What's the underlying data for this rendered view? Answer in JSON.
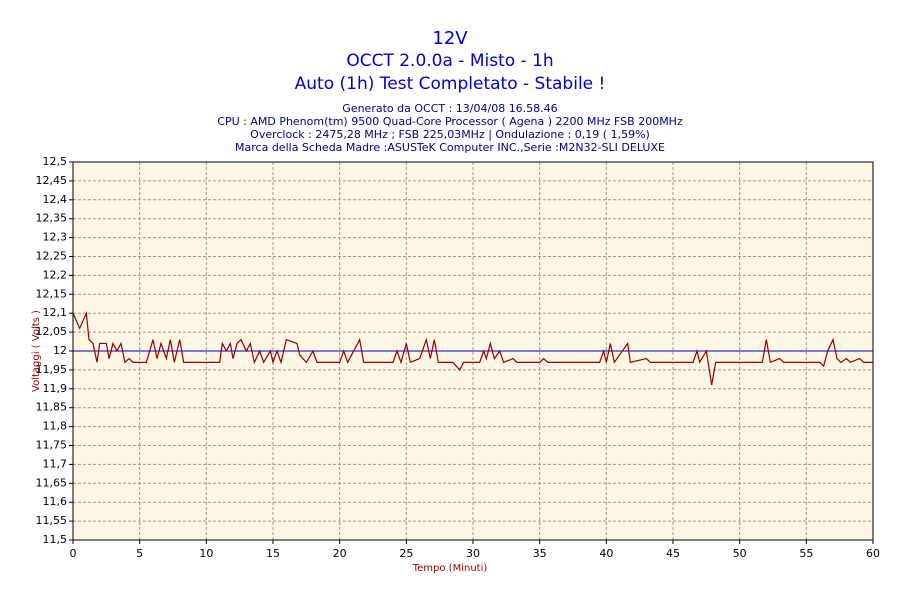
{
  "chart_data": {
    "type": "line",
    "title": "12V",
    "subtitle": "OCCT 2.0.0a - Misto - 1h",
    "subtitle2": "Auto (1h) Test Completato - Stabile !",
    "info": [
      "Generato da OCCT : 13/04/08 16.58.46",
      "CPU : AMD Phenom(tm) 9500 Quad-Core Processor ( Agena ) 2200 MHz FSB 200MHz",
      "Overclock : 2475,28 MHz ; FSB 225,03MHz | Ondulazione : 0,19 ( 1,59%)",
      "Marca della Scheda Madre :ASUSTeK Computer INC.,Serie :M2N32-SLI DELUXE"
    ],
    "xlabel": "Tempo (Minuti)",
    "ylabel": "Voltaggi ( Volts )",
    "xlim": [
      0,
      60
    ],
    "xticks": [
      0,
      5,
      10,
      15,
      20,
      25,
      30,
      35,
      40,
      45,
      50,
      55,
      60
    ],
    "ylim": [
      11.5,
      12.5
    ],
    "yticks": [
      {
        "value": 11.5,
        "label": "11,5"
      },
      {
        "value": 11.55,
        "label": "11,55"
      },
      {
        "value": 11.6,
        "label": "11,6"
      },
      {
        "value": 11.65,
        "label": "11,65"
      },
      {
        "value": 11.7,
        "label": "11,7"
      },
      {
        "value": 11.75,
        "label": "11,75"
      },
      {
        "value": 11.8,
        "label": "11,8"
      },
      {
        "value": 11.85,
        "label": "11,85"
      },
      {
        "value": 11.9,
        "label": "11,9"
      },
      {
        "value": 11.95,
        "label": "11,95"
      },
      12,
      {
        "value": 12.05,
        "label": "12,05"
      },
      {
        "value": 12.1,
        "label": "12,1"
      },
      {
        "value": 12.15,
        "label": "12,15"
      },
      {
        "value": 12.2,
        "label": "12,2"
      },
      {
        "value": 12.25,
        "label": "12,25"
      },
      {
        "value": 12.3,
        "label": "12,3"
      },
      {
        "value": 12.35,
        "label": "12,35"
      },
      {
        "value": 12.4,
        "label": "12,4"
      },
      {
        "value": 12.45,
        "label": "12,45"
      },
      {
        "value": 12.5,
        "label": "12,5"
      }
    ],
    "grid": true,
    "reference_line": {
      "value": 12,
      "color": "#0000cc"
    },
    "x": [
      0,
      0.5,
      1.0,
      1.2,
      1.5,
      1.8,
      2.0,
      2.5,
      2.7,
      3.0,
      3.3,
      3.6,
      3.9,
      4.2,
      4.5,
      5.5,
      6.0,
      6.3,
      6.6,
      7.0,
      7.3,
      7.6,
      8.0,
      8.3,
      11.0,
      11.2,
      11.5,
      11.8,
      12.0,
      12.3,
      12.6,
      13.0,
      13.3,
      13.6,
      14.0,
      14.3,
      14.8,
      15.0,
      15.3,
      15.6,
      16.0,
      16.8,
      17.0,
      17.5,
      18.0,
      18.3,
      20.0,
      20.3,
      20.6,
      21.5,
      21.8,
      24.0,
      24.3,
      24.6,
      25.0,
      25.3,
      26.0,
      26.5,
      26.8,
      27.1,
      27.4,
      28.5,
      29.0,
      29.3,
      30.5,
      30.8,
      31.0,
      31.3,
      31.6,
      32.0,
      32.3,
      33.0,
      33.3,
      35.0,
      35.3,
      35.6,
      39.5,
      39.8,
      40.0,
      40.3,
      40.6,
      41.6,
      41.8,
      43.0,
      43.3,
      46.5,
      46.8,
      47.0,
      47.5,
      47.9,
      48.2,
      51.7,
      52.0,
      52.3,
      53.0,
      53.3,
      56.0,
      56.3,
      56.6,
      57.0,
      57.3,
      57.6,
      58.0,
      58.3,
      59.0,
      59.3,
      60
    ],
    "series": [
      {
        "name": "12V",
        "color": "#990000",
        "values": [
          12.1,
          12.06,
          12.1,
          12.03,
          12.02,
          11.97,
          12.02,
          12.02,
          11.98,
          12.02,
          12.0,
          12.02,
          11.97,
          11.98,
          11.97,
          11.97,
          12.03,
          11.98,
          12.02,
          11.98,
          12.03,
          11.97,
          12.03,
          11.97,
          11.97,
          12.02,
          12.0,
          12.02,
          11.98,
          12.02,
          12.03,
          12.0,
          12.02,
          11.97,
          12.0,
          11.97,
          12.0,
          11.97,
          12.0,
          11.97,
          12.03,
          12.02,
          11.99,
          11.97,
          12.0,
          11.97,
          11.97,
          12.0,
          11.97,
          12.03,
          11.97,
          11.97,
          12.0,
          11.97,
          12.02,
          11.97,
          11.98,
          12.03,
          11.98,
          12.03,
          11.97,
          11.97,
          11.95,
          11.97,
          11.97,
          12.0,
          11.98,
          12.02,
          11.98,
          12.0,
          11.97,
          11.98,
          11.97,
          11.97,
          11.98,
          11.97,
          11.97,
          12.0,
          11.97,
          12.02,
          11.97,
          12.02,
          11.97,
          11.98,
          11.97,
          11.97,
          12.0,
          11.97,
          12.0,
          11.91,
          11.97,
          11.97,
          12.03,
          11.97,
          11.98,
          11.97,
          11.97,
          11.96,
          12.0,
          12.03,
          11.98,
          11.97,
          11.98,
          11.97,
          11.98,
          11.97,
          11.97
        ]
      }
    ]
  }
}
